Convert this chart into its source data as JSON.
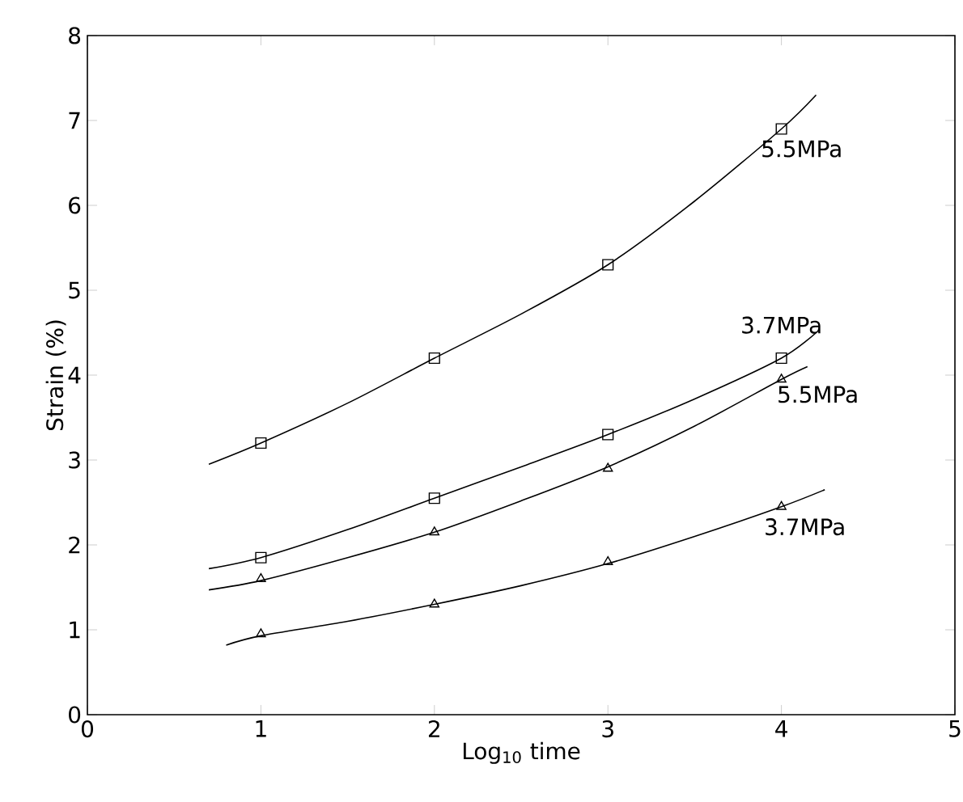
{
  "chart_data": {
    "type": "line",
    "xlabel": "Log$_{10}$ time",
    "ylabel": "Strain (%)",
    "xlim": [
      0,
      5
    ],
    "ylim": [
      0,
      8
    ],
    "xticks": [
      0,
      1,
      2,
      3,
      4,
      5
    ],
    "yticks": [
      0,
      1,
      2,
      3,
      4,
      5,
      6,
      7,
      8
    ],
    "grid": false,
    "legend": false,
    "series": [
      {
        "name": "5.5MPa",
        "marker": "none",
        "color": "#000000",
        "x": [
          0.7,
          1,
          1.5,
          2,
          2.5,
          3,
          3.5,
          4,
          4.2
        ],
        "values": [
          2.95,
          3.2,
          3.67,
          4.2,
          4.72,
          5.3,
          6.05,
          6.9,
          7.3
        ]
      },
      {
        "name": "3.7MPa",
        "marker": "none",
        "color": "#000000",
        "x": [
          0.7,
          1,
          1.5,
          2,
          2.5,
          3,
          3.5,
          4,
          4.2
        ],
        "values": [
          1.72,
          1.85,
          2.18,
          2.55,
          2.92,
          3.3,
          3.72,
          4.2,
          4.5
        ]
      },
      {
        "name": "5.5MPa",
        "marker": "none",
        "color": "#000000",
        "x": [
          0.7,
          1,
          1.5,
          2,
          2.5,
          3,
          3.5,
          4,
          4.15
        ],
        "values": [
          1.47,
          1.58,
          1.85,
          2.15,
          2.52,
          2.92,
          3.4,
          3.95,
          4.1
        ]
      },
      {
        "name": "3.7MPa",
        "marker": "none",
        "color": "#000000",
        "x": [
          0.8,
          1,
          1.5,
          2,
          2.5,
          3,
          3.5,
          4,
          4.25
        ],
        "values": [
          0.82,
          0.93,
          1.1,
          1.3,
          1.52,
          1.78,
          2.1,
          2.45,
          2.65
        ]
      },
      {
        "type": "scatter",
        "marker": "square",
        "color": "#000000",
        "x": [
          1,
          2,
          3,
          4
        ],
        "values": [
          3.2,
          4.2,
          5.3,
          6.9
        ]
      },
      {
        "type": "scatter",
        "marker": "square",
        "color": "#000000",
        "x": [
          1,
          2,
          3,
          4
        ],
        "values": [
          1.85,
          2.55,
          3.3,
          4.2
        ]
      },
      {
        "type": "scatter",
        "marker": "triangle",
        "color": "#000000",
        "x": [
          1,
          2,
          3,
          4
        ],
        "values": [
          1.6,
          2.15,
          2.9,
          3.95
        ]
      },
      {
        "type": "scatter",
        "marker": "triangle",
        "color": "#000000",
        "x": [
          1,
          2,
          3,
          4
        ],
        "values": [
          0.95,
          1.3,
          1.8,
          2.45
        ]
      }
    ]
  }
}
